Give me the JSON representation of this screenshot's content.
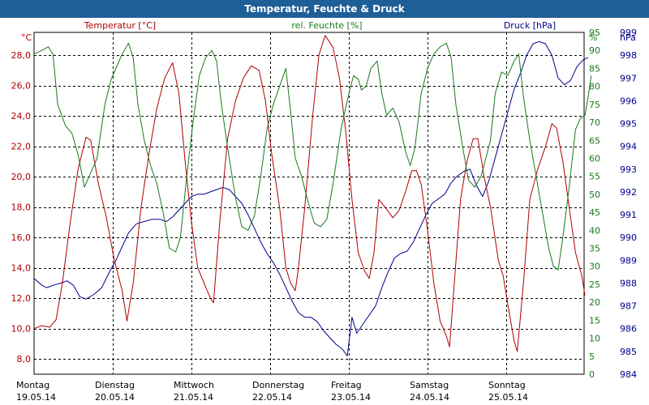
{
  "window": {
    "title": "Temperatur, Feuchte & Druck"
  },
  "colors": {
    "temperature": "#b00000",
    "humidity": "#1b7a1b",
    "pressure": "#00008b",
    "grid": "#000000",
    "titlebar": "#1f5f98"
  },
  "chart_data": {
    "type": "line",
    "title": "Temperatur, Feuchte & Druck",
    "x": {
      "label": "",
      "range_days": [
        0,
        7.2
      ]
    },
    "day_labels": [
      {
        "day": "Montag",
        "date": "19.05.14",
        "x": 0
      },
      {
        "day": "Dienstag",
        "date": "20.05.14",
        "x": 1
      },
      {
        "day": "Mittwoch",
        "date": "21.05.14",
        "x": 2
      },
      {
        "day": "Donnerstag",
        "date": "22.05.14",
        "x": 3
      },
      {
        "day": "Freitag",
        "date": "23.05.14",
        "x": 4
      },
      {
        "day": "Samstag",
        "date": "24.05.14",
        "x": 5
      },
      {
        "day": "Sonntag",
        "date": "25.05.14",
        "x": 6
      }
    ],
    "axes": {
      "temperature": {
        "label": "Temperatur [°C]",
        "unit": "°C",
        "range": [
          7.0,
          29.5
        ],
        "ticks": [
          "8,0",
          "10,0",
          "12,0",
          "14,0",
          "16,0",
          "18,0",
          "20,0",
          "22,0",
          "24,0",
          "26,0",
          "28,0"
        ],
        "tick_values": [
          8,
          10,
          12,
          14,
          16,
          18,
          20,
          22,
          24,
          26,
          28
        ]
      },
      "humidity": {
        "label": "rel. Feuchte [%]",
        "unit": "%",
        "range": [
          0,
          95
        ],
        "ticks": [
          "0",
          "5",
          "10",
          "15",
          "20",
          "25",
          "30",
          "35",
          "40",
          "45",
          "50",
          "55",
          "60",
          "65",
          "70",
          "75",
          "80",
          "85",
          "90",
          "95"
        ],
        "tick_values": [
          0,
          5,
          10,
          15,
          20,
          25,
          30,
          35,
          40,
          45,
          50,
          55,
          60,
          65,
          70,
          75,
          80,
          85,
          90,
          95
        ]
      },
      "pressure": {
        "label": "Druck [hPa]",
        "unit": "hPa",
        "range": [
          984,
          999
        ],
        "ticks": [
          "984",
          "985",
          "986",
          "987",
          "988",
          "989",
          "990",
          "991",
          "992",
          "993",
          "994",
          "995",
          "996",
          "997",
          "998",
          "999"
        ],
        "tick_values": [
          984,
          985,
          986,
          987,
          988,
          989,
          990,
          991,
          992,
          993,
          994,
          995,
          996,
          997,
          998,
          999
        ]
      }
    },
    "series": [
      {
        "name": "Temperatur",
        "axis": "temperature",
        "color": "#b00000",
        "points": [
          [
            0.0,
            10.0
          ],
          [
            0.1,
            10.2
          ],
          [
            0.2,
            10.1
          ],
          [
            0.28,
            10.6
          ],
          [
            0.36,
            13.0
          ],
          [
            0.46,
            17.0
          ],
          [
            0.56,
            20.5
          ],
          [
            0.66,
            22.6
          ],
          [
            0.72,
            22.4
          ],
          [
            0.82,
            19.5
          ],
          [
            0.92,
            17.3
          ],
          [
            1.02,
            14.5
          ],
          [
            1.12,
            12.5
          ],
          [
            1.18,
            10.5
          ],
          [
            1.26,
            13.0
          ],
          [
            1.36,
            18.0
          ],
          [
            1.46,
            21.5
          ],
          [
            1.56,
            24.5
          ],
          [
            1.66,
            26.5
          ],
          [
            1.76,
            27.5
          ],
          [
            1.84,
            25.5
          ],
          [
            1.92,
            21.0
          ],
          [
            2.0,
            17.0
          ],
          [
            2.08,
            14.0
          ],
          [
            2.16,
            13.0
          ],
          [
            2.24,
            12.0
          ],
          [
            2.28,
            11.7
          ],
          [
            2.36,
            17.0
          ],
          [
            2.46,
            22.5
          ],
          [
            2.56,
            25.0
          ],
          [
            2.66,
            26.5
          ],
          [
            2.76,
            27.3
          ],
          [
            2.86,
            27.0
          ],
          [
            2.94,
            25.0
          ],
          [
            3.02,
            21.5
          ],
          [
            3.12,
            18.0
          ],
          [
            3.2,
            14.0
          ],
          [
            3.26,
            13.0
          ],
          [
            3.32,
            12.5
          ],
          [
            3.36,
            14.0
          ],
          [
            3.44,
            18.0
          ],
          [
            3.54,
            24.0
          ],
          [
            3.62,
            28.0
          ],
          [
            3.7,
            29.3
          ],
          [
            3.8,
            28.5
          ],
          [
            3.88,
            26.5
          ],
          [
            3.96,
            23.0
          ],
          [
            4.04,
            18.5
          ],
          [
            4.12,
            15.0
          ],
          [
            4.2,
            13.8
          ],
          [
            4.26,
            13.3
          ],
          [
            4.32,
            15.0
          ],
          [
            4.38,
            18.5
          ],
          [
            4.46,
            18.0
          ],
          [
            4.56,
            17.3
          ],
          [
            4.64,
            17.8
          ],
          [
            4.72,
            19.0
          ],
          [
            4.8,
            20.4
          ],
          [
            4.86,
            20.4
          ],
          [
            4.92,
            19.5
          ],
          [
            5.0,
            16.5
          ],
          [
            5.08,
            13.0
          ],
          [
            5.16,
            10.5
          ],
          [
            5.24,
            9.5
          ],
          [
            5.28,
            8.8
          ],
          [
            5.34,
            13.0
          ],
          [
            5.42,
            18.5
          ],
          [
            5.5,
            21.0
          ],
          [
            5.58,
            22.5
          ],
          [
            5.64,
            22.5
          ],
          [
            5.72,
            20.0
          ],
          [
            5.8,
            18.0
          ],
          [
            5.9,
            14.5
          ],
          [
            5.96,
            13.5
          ],
          [
            6.04,
            11.0
          ],
          [
            6.1,
            9.2
          ],
          [
            6.14,
            8.5
          ],
          [
            6.22,
            13.0
          ],
          [
            6.3,
            18.5
          ],
          [
            6.4,
            20.5
          ],
          [
            6.5,
            22.0
          ],
          [
            6.58,
            23.5
          ],
          [
            6.64,
            23.2
          ],
          [
            6.72,
            21.0
          ],
          [
            6.8,
            18.0
          ],
          [
            6.88,
            15.0
          ],
          [
            6.96,
            13.5
          ],
          [
            7.0,
            12.2
          ]
        ]
      },
      {
        "name": "rel. Feuchte",
        "axis": "humidity",
        "color": "#1b7a1b",
        "points": [
          [
            0.0,
            89.0
          ],
          [
            0.1,
            90.0
          ],
          [
            0.18,
            91.0
          ],
          [
            0.24,
            89.0
          ],
          [
            0.3,
            75.0
          ],
          [
            0.4,
            69.0
          ],
          [
            0.48,
            67.0
          ],
          [
            0.56,
            61.0
          ],
          [
            0.64,
            52.0
          ],
          [
            0.7,
            55.0
          ],
          [
            0.8,
            60.0
          ],
          [
            0.9,
            75.0
          ],
          [
            0.98,
            82.0
          ],
          [
            1.04,
            85.0
          ],
          [
            1.12,
            89.0
          ],
          [
            1.2,
            92.0
          ],
          [
            1.26,
            88.0
          ],
          [
            1.32,
            75.0
          ],
          [
            1.4,
            65.0
          ],
          [
            1.48,
            58.0
          ],
          [
            1.56,
            53.0
          ],
          [
            1.64,
            45.0
          ],
          [
            1.72,
            35.0
          ],
          [
            1.8,
            34.0
          ],
          [
            1.86,
            38.0
          ],
          [
            1.94,
            55.0
          ],
          [
            2.02,
            70.0
          ],
          [
            2.1,
            83.0
          ],
          [
            2.18,
            88.0
          ],
          [
            2.26,
            90.0
          ],
          [
            2.32,
            87.0
          ],
          [
            2.38,
            75.0
          ],
          [
            2.46,
            63.0
          ],
          [
            2.56,
            49.0
          ],
          [
            2.64,
            41.0
          ],
          [
            2.72,
            40.0
          ],
          [
            2.8,
            44.0
          ],
          [
            2.88,
            55.0
          ],
          [
            2.96,
            68.0
          ],
          [
            3.04,
            75.0
          ],
          [
            3.12,
            80.0
          ],
          [
            3.2,
            85.0
          ],
          [
            3.26,
            73.0
          ],
          [
            3.32,
            60.0
          ],
          [
            3.4,
            55.0
          ],
          [
            3.48,
            48.0
          ],
          [
            3.56,
            42.0
          ],
          [
            3.64,
            41.0
          ],
          [
            3.72,
            43.0
          ],
          [
            3.8,
            53.0
          ],
          [
            3.9,
            68.0
          ],
          [
            4.0,
            78.0
          ],
          [
            4.06,
            83.0
          ],
          [
            4.12,
            82.0
          ],
          [
            4.16,
            79.0
          ],
          [
            4.22,
            80.0
          ],
          [
            4.28,
            85.0
          ],
          [
            4.36,
            87.0
          ],
          [
            4.42,
            78.0
          ],
          [
            4.48,
            72.0
          ],
          [
            4.56,
            74.0
          ],
          [
            4.64,
            70.0
          ],
          [
            4.72,
            62.0
          ],
          [
            4.78,
            58.0
          ],
          [
            4.84,
            63.0
          ],
          [
            4.92,
            78.0
          ],
          [
            5.0,
            85.0
          ],
          [
            5.08,
            89.0
          ],
          [
            5.16,
            91.0
          ],
          [
            5.24,
            92.0
          ],
          [
            5.3,
            88.0
          ],
          [
            5.36,
            75.0
          ],
          [
            5.44,
            64.0
          ],
          [
            5.52,
            54.0
          ],
          [
            5.6,
            52.0
          ],
          [
            5.68,
            55.0
          ],
          [
            5.74,
            60.0
          ],
          [
            5.8,
            65.0
          ],
          [
            5.86,
            78.0
          ],
          [
            5.94,
            84.0
          ],
          [
            6.02,
            83.0
          ],
          [
            6.1,
            87.0
          ],
          [
            6.16,
            89.0
          ],
          [
            6.22,
            77.0
          ],
          [
            6.3,
            65.0
          ],
          [
            6.38,
            55.0
          ],
          [
            6.46,
            45.0
          ],
          [
            6.54,
            35.0
          ],
          [
            6.6,
            30.0
          ],
          [
            6.66,
            29.0
          ],
          [
            6.72,
            38.0
          ],
          [
            6.8,
            52.0
          ],
          [
            6.88,
            68.0
          ],
          [
            6.94,
            71.0
          ],
          [
            7.0,
            72.0
          ],
          [
            7.04,
            77.0
          ],
          [
            7.08,
            83.0
          ]
        ]
      },
      {
        "name": "Druck",
        "axis": "pressure",
        "color": "#00008b",
        "points": [
          [
            0.0,
            988.2
          ],
          [
            0.1,
            987.9
          ],
          [
            0.16,
            987.8
          ],
          [
            0.24,
            987.9
          ],
          [
            0.34,
            988.0
          ],
          [
            0.42,
            988.1
          ],
          [
            0.5,
            987.9
          ],
          [
            0.58,
            987.4
          ],
          [
            0.66,
            987.3
          ],
          [
            0.76,
            987.5
          ],
          [
            0.86,
            987.8
          ],
          [
            0.96,
            988.5
          ],
          [
            1.04,
            989.0
          ],
          [
            1.12,
            989.6
          ],
          [
            1.2,
            990.2
          ],
          [
            1.3,
            990.6
          ],
          [
            1.4,
            990.7
          ],
          [
            1.5,
            990.8
          ],
          [
            1.6,
            990.8
          ],
          [
            1.68,
            990.7
          ],
          [
            1.76,
            990.9
          ],
          [
            1.84,
            991.2
          ],
          [
            1.92,
            991.5
          ],
          [
            2.0,
            991.8
          ],
          [
            2.08,
            991.9
          ],
          [
            2.16,
            991.9
          ],
          [
            2.24,
            992.0
          ],
          [
            2.32,
            992.1
          ],
          [
            2.4,
            992.2
          ],
          [
            2.48,
            992.1
          ],
          [
            2.56,
            991.8
          ],
          [
            2.64,
            991.5
          ],
          [
            2.72,
            991.0
          ],
          [
            2.8,
            990.4
          ],
          [
            2.88,
            989.8
          ],
          [
            2.96,
            989.3
          ],
          [
            3.04,
            988.9
          ],
          [
            3.12,
            988.4
          ],
          [
            3.2,
            987.8
          ],
          [
            3.28,
            987.2
          ],
          [
            3.36,
            986.7
          ],
          [
            3.44,
            986.5
          ],
          [
            3.52,
            986.5
          ],
          [
            3.6,
            986.3
          ],
          [
            3.68,
            985.9
          ],
          [
            3.76,
            985.6
          ],
          [
            3.84,
            985.3
          ],
          [
            3.92,
            985.1
          ],
          [
            3.98,
            984.8
          ],
          [
            4.04,
            986.5
          ],
          [
            4.1,
            985.8
          ],
          [
            4.18,
            986.2
          ],
          [
            4.26,
            986.6
          ],
          [
            4.34,
            987.0
          ],
          [
            4.42,
            987.8
          ],
          [
            4.5,
            988.5
          ],
          [
            4.58,
            989.1
          ],
          [
            4.66,
            989.3
          ],
          [
            4.74,
            989.4
          ],
          [
            4.82,
            989.8
          ],
          [
            4.9,
            990.4
          ],
          [
            4.98,
            991.0
          ],
          [
            5.06,
            991.5
          ],
          [
            5.14,
            991.7
          ],
          [
            5.22,
            991.9
          ],
          [
            5.3,
            992.4
          ],
          [
            5.38,
            992.7
          ],
          [
            5.46,
            992.9
          ],
          [
            5.54,
            993.0
          ],
          [
            5.62,
            992.3
          ],
          [
            5.7,
            991.8
          ],
          [
            5.78,
            992.5
          ],
          [
            5.86,
            993.5
          ],
          [
            5.94,
            994.5
          ],
          [
            6.02,
            995.5
          ],
          [
            6.1,
            996.5
          ],
          [
            6.18,
            997.2
          ],
          [
            6.26,
            998.0
          ],
          [
            6.34,
            998.5
          ],
          [
            6.42,
            998.6
          ],
          [
            6.5,
            998.5
          ],
          [
            6.58,
            998.0
          ],
          [
            6.66,
            997.0
          ],
          [
            6.74,
            996.7
          ],
          [
            6.82,
            996.9
          ],
          [
            6.9,
            997.5
          ],
          [
            6.98,
            997.8
          ],
          [
            7.04,
            997.9
          ]
        ]
      }
    ]
  }
}
